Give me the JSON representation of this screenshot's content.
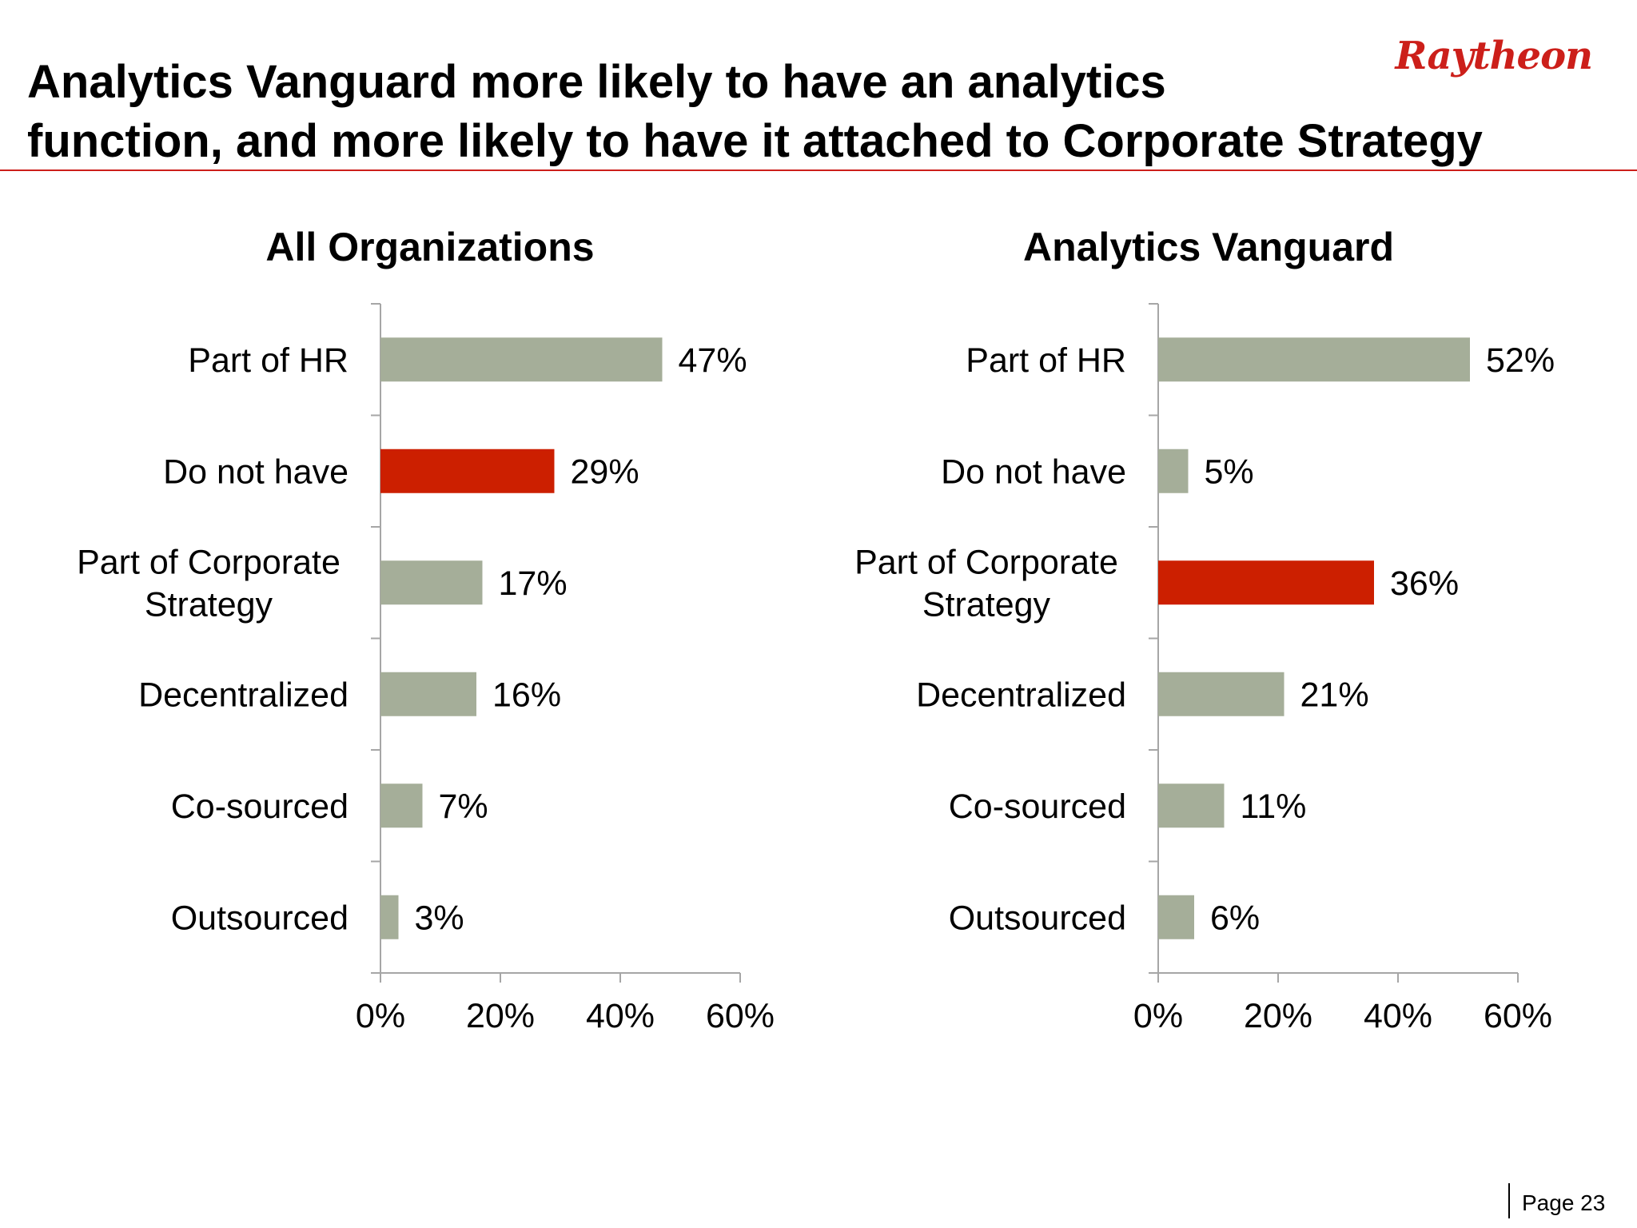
{
  "slide": {
    "title": "Analytics Vanguard more likely to have an analytics\nfunction, and more likely to have it attached to Corporate Strategy",
    "logo_text": "Raytheon",
    "page_label": "Page 23"
  },
  "colors": {
    "bar": "#a5ae99",
    "highlight": "#cc1f00",
    "axis": "#a6a6a6",
    "brand": "#cc1f1a"
  },
  "chart_data": [
    {
      "type": "bar",
      "orientation": "horizontal",
      "title": "All Organizations",
      "categories": [
        "Part of HR",
        "Do not have",
        "Part of Corporate Strategy",
        "Decentralized",
        "Co-sourced",
        "Outsourced"
      ],
      "category_lines": [
        [
          "Part of HR"
        ],
        [
          "Do not have"
        ],
        [
          "Part of Corporate",
          "Strategy"
        ],
        [
          "Decentralized"
        ],
        [
          "Co-sourced"
        ],
        [
          "Outsourced"
        ]
      ],
      "values": [
        47,
        29,
        17,
        16,
        7,
        3
      ],
      "data_labels": [
        "47%",
        "29%",
        "17%",
        "16%",
        "7%",
        "3%"
      ],
      "highlight_index": 1,
      "xlim": [
        0,
        60
      ],
      "xticks": [
        0,
        20,
        40,
        60
      ],
      "xtick_labels": [
        "0%",
        "20%",
        "40%",
        "60%"
      ],
      "grid": false,
      "legend": "none"
    },
    {
      "type": "bar",
      "orientation": "horizontal",
      "title": "Analytics Vanguard",
      "categories": [
        "Part of HR",
        "Do not have",
        "Part of Corporate Strategy",
        "Decentralized",
        "Co-sourced",
        "Outsourced"
      ],
      "category_lines": [
        [
          "Part of HR"
        ],
        [
          "Do not have"
        ],
        [
          "Part of Corporate",
          "Strategy"
        ],
        [
          "Decentralized"
        ],
        [
          "Co-sourced"
        ],
        [
          "Outsourced"
        ]
      ],
      "values": [
        52,
        5,
        36,
        21,
        11,
        6
      ],
      "data_labels": [
        "52%",
        "5%",
        "36%",
        "21%",
        "11%",
        "6%"
      ],
      "highlight_index": 2,
      "xlim": [
        0,
        60
      ],
      "xticks": [
        0,
        20,
        40,
        60
      ],
      "xtick_labels": [
        "0%",
        "20%",
        "40%",
        "60%"
      ],
      "grid": false,
      "legend": "none"
    }
  ]
}
